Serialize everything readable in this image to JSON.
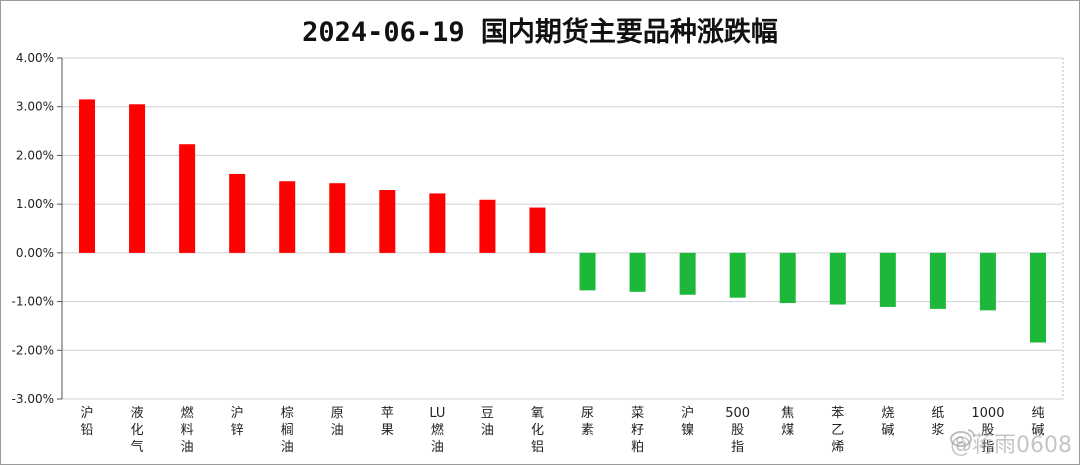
{
  "chart_data": {
    "type": "bar",
    "title": "2024-06-19 国内期货主要品种涨跌幅",
    "xlabel": "",
    "ylabel": "",
    "ylim": [
      -3,
      4
    ],
    "yticks": [
      4,
      3,
      2,
      1,
      0,
      -1,
      -2,
      -3
    ],
    "ytick_labels": [
      "4.00%",
      "3.00%",
      "2.00%",
      "1.00%",
      "0.00%",
      "-1.00%",
      "-2.00%",
      "-3.00%"
    ],
    "grid": true,
    "legend": "none",
    "categories": [
      "沪铅",
      "液化气",
      "燃料油",
      "沪锌",
      "棕榈油",
      "原油",
      "苹果",
      "LU燃油",
      "豆油",
      "氧化铝",
      "尿素",
      "菜籽粕",
      "沪镍",
      "500股指",
      "焦煤",
      "苯乙烯",
      "烧碱",
      "纸浆",
      "1000股指",
      "纯碱"
    ],
    "values": [
      3.15,
      3.05,
      2.23,
      1.62,
      1.47,
      1.43,
      1.29,
      1.22,
      1.09,
      0.93,
      -0.77,
      -0.8,
      -0.86,
      -0.92,
      -1.03,
      -1.06,
      -1.11,
      -1.15,
      -1.18,
      -1.84
    ],
    "colors": {
      "positive": "#ff0000",
      "negative": "#1db83a"
    }
  },
  "watermark": "@蒋雨0608"
}
